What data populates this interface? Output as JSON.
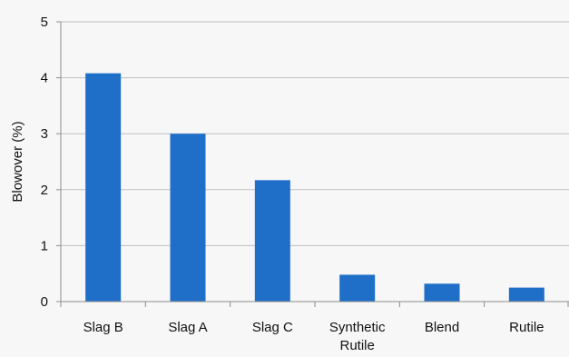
{
  "chart_data": {
    "type": "bar",
    "title": "",
    "xlabel": "",
    "ylabel": "Blowover (%)",
    "ylim": [
      0,
      5
    ],
    "yticks": [
      "0",
      "1",
      "2",
      "3",
      "4",
      "5"
    ],
    "grid": true,
    "legend": "none",
    "categories": [
      "Slag B",
      "Slag A",
      "Slag C",
      "Synthetic Rutile",
      "Blend",
      "Rutile"
    ],
    "category_lines": [
      [
        "Slag B"
      ],
      [
        "Slag A"
      ],
      [
        "Slag C"
      ],
      [
        "Synthetic",
        "Rutile"
      ],
      [
        "Blend"
      ],
      [
        "Rutile"
      ]
    ],
    "values": [
      4.08,
      3.0,
      2.17,
      0.48,
      0.32,
      0.25
    ],
    "colors": {
      "bar": "#1f6fc9",
      "grid": "#bfbfbf",
      "axis": "#8c8c8c"
    }
  }
}
